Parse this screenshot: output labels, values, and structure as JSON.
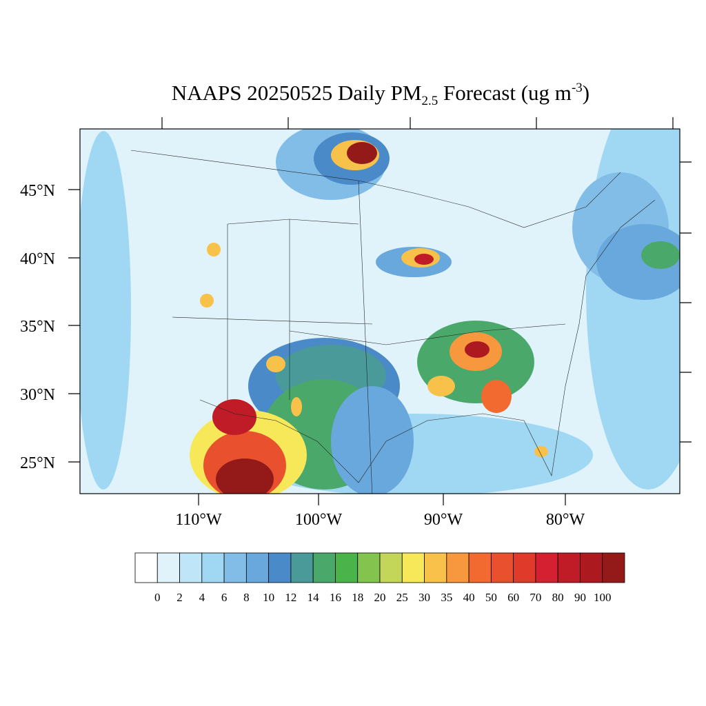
{
  "title": {
    "main": "NAAPS 20250525 Daily PM",
    "sub": "2.5",
    "middle": " Forecast (ug m",
    "sup": "-3",
    "end": ")"
  },
  "lat_labels": [
    "45°N",
    "40°N",
    "35°N",
    "30°N",
    "25°N"
  ],
  "lon_labels": [
    "110°W",
    "100°W",
    "90°W",
    "80°W"
  ],
  "colorbar": {
    "levels": [
      0,
      2,
      4,
      6,
      8,
      10,
      12,
      14,
      16,
      18,
      20,
      25,
      30,
      35,
      40,
      50,
      60,
      70,
      80,
      90,
      100
    ],
    "colors": [
      "#ffffff",
      "#e0f3fb",
      "#bfe6f8",
      "#a0d8f4",
      "#82bde8",
      "#68a8dc",
      "#4a8ac8",
      "#4a9a9a",
      "#4aa86a",
      "#4ab44a",
      "#82c44e",
      "#c4d65a",
      "#f7e85a",
      "#f8c24a",
      "#f8983e",
      "#f26a30",
      "#e8502e",
      "#e03a2a",
      "#d42030",
      "#c01c28",
      "#ac1a20",
      "#941a1a"
    ]
  }
}
